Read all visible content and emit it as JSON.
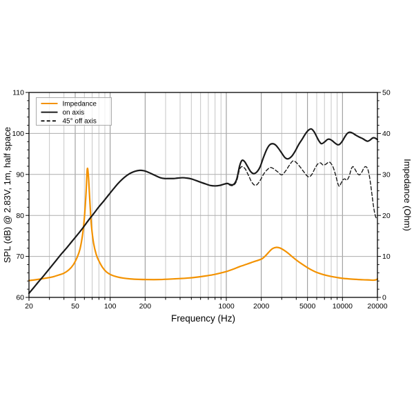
{
  "chart_data": {
    "type": "line",
    "title": "",
    "xlabel": "Frequency (Hz)",
    "ylabel_left": "SPL (dB) @ 2.83V, 1m, half space",
    "ylabel_right": "Impedance (Ohm)",
    "x_scale": "log",
    "xlim": [
      20,
      20000
    ],
    "ylim_left": [
      60,
      110
    ],
    "ylim_right": [
      0,
      50
    ],
    "grid": true,
    "legend_position": "upper left",
    "x_tick_labels": [
      "20",
      "50",
      "100",
      "200",
      "1000",
      "2000",
      "5000",
      "10000",
      "20000"
    ],
    "x_tick_values": [
      20,
      50,
      100,
      200,
      1000,
      2000,
      5000,
      10000,
      20000
    ],
    "x_gridlines": [
      30,
      40,
      50,
      60,
      70,
      80,
      90,
      100,
      200,
      300,
      400,
      500,
      600,
      700,
      800,
      900,
      1000,
      2000,
      3000,
      4000,
      5000,
      6000,
      7000,
      8000,
      9000,
      10000
    ],
    "y_left_ticks": [
      60,
      70,
      80,
      90,
      100,
      110
    ],
    "y_right_ticks": [
      0,
      10,
      20,
      30,
      40,
      50
    ],
    "y_minor_step": 2,
    "colors": {
      "impedance": "#F39200",
      "spl": "#1a1a1a",
      "grid_minor": "#c6c6c6",
      "grid_major": "#8f8f8f",
      "frame": "#000000",
      "legend_border": "#aaaaaa"
    },
    "legend": [
      {
        "label": "Impedance",
        "color": "#F39200",
        "dash": null
      },
      {
        "label": "on axis",
        "color": "#1a1a1a",
        "dash": null
      },
      {
        "label": "45° off axis",
        "color": "#1a1a1a",
        "dash": [
          5,
          3.2
        ]
      }
    ],
    "series": [
      {
        "name": "Impedance",
        "axis": "right",
        "unit": "Ohm",
        "color": "#F39200",
        "width": 2.2,
        "dash": null,
        "points": [
          [
            20,
            4.1
          ],
          [
            24,
            4.4
          ],
          [
            28,
            4.7
          ],
          [
            32,
            5.0
          ],
          [
            36,
            5.45
          ],
          [
            40,
            5.9
          ],
          [
            44,
            6.7
          ],
          [
            48,
            7.9
          ],
          [
            52,
            9.8
          ],
          [
            55,
            11.8
          ],
          [
            58,
            15.5
          ],
          [
            60,
            19.5
          ],
          [
            62,
            25.5
          ],
          [
            63.5,
            31.3
          ],
          [
            65,
            29.5
          ],
          [
            67,
            23.0
          ],
          [
            69,
            17.5
          ],
          [
            72,
            13.2
          ],
          [
            76,
            10.4
          ],
          [
            80,
            8.9
          ],
          [
            86,
            7.3
          ],
          [
            93,
            6.2
          ],
          [
            102,
            5.5
          ],
          [
            115,
            5.0
          ],
          [
            130,
            4.7
          ],
          [
            150,
            4.5
          ],
          [
            175,
            4.4
          ],
          [
            210,
            4.35
          ],
          [
            260,
            4.35
          ],
          [
            320,
            4.45
          ],
          [
            400,
            4.6
          ],
          [
            480,
            4.75
          ],
          [
            560,
            4.95
          ],
          [
            650,
            5.2
          ],
          [
            760,
            5.5
          ],
          [
            880,
            5.9
          ],
          [
            1000,
            6.3
          ],
          [
            1150,
            6.9
          ],
          [
            1300,
            7.5
          ],
          [
            1500,
            8.1
          ],
          [
            1700,
            8.65
          ],
          [
            1900,
            9.1
          ],
          [
            2050,
            9.5
          ],
          [
            2200,
            10.3
          ],
          [
            2350,
            11.2
          ],
          [
            2500,
            11.9
          ],
          [
            2700,
            12.2
          ],
          [
            2900,
            12.05
          ],
          [
            3100,
            11.6
          ],
          [
            3400,
            10.8
          ],
          [
            3700,
            9.9
          ],
          [
            4100,
            8.9
          ],
          [
            4500,
            8.1
          ],
          [
            5000,
            7.25
          ],
          [
            5500,
            6.6
          ],
          [
            6000,
            6.1
          ],
          [
            6600,
            5.7
          ],
          [
            7300,
            5.35
          ],
          [
            8000,
            5.1
          ],
          [
            9000,
            4.85
          ],
          [
            10000,
            4.65
          ],
          [
            11500,
            4.5
          ],
          [
            13000,
            4.4
          ],
          [
            15000,
            4.3
          ],
          [
            17000,
            4.25
          ],
          [
            18500,
            4.2
          ],
          [
            19500,
            4.3
          ],
          [
            20000,
            4.5
          ]
        ]
      },
      {
        "name": "on axis",
        "axis": "left",
        "unit": "dB",
        "color": "#1a1a1a",
        "width": 2.2,
        "dash": null,
        "points": [
          [
            20,
            61.0
          ],
          [
            22,
            62.4
          ],
          [
            24,
            63.7
          ],
          [
            27,
            65.4
          ],
          [
            30,
            67.0
          ],
          [
            34,
            68.9
          ],
          [
            38,
            70.6
          ],
          [
            42,
            72.0
          ],
          [
            47,
            73.7
          ],
          [
            52,
            75.2
          ],
          [
            58,
            76.9
          ],
          [
            65,
            78.8
          ],
          [
            72,
            80.4
          ],
          [
            80,
            82.1
          ],
          [
            88,
            83.5
          ],
          [
            97,
            85.0
          ],
          [
            107,
            86.5
          ],
          [
            117,
            87.8
          ],
          [
            128,
            88.9
          ],
          [
            140,
            89.8
          ],
          [
            152,
            90.4
          ],
          [
            165,
            90.8
          ],
          [
            180,
            91.0
          ],
          [
            195,
            90.9
          ],
          [
            210,
            90.6
          ],
          [
            230,
            90.1
          ],
          [
            250,
            89.6
          ],
          [
            270,
            89.2
          ],
          [
            295,
            89.0
          ],
          [
            320,
            89.0
          ],
          [
            350,
            89.0
          ],
          [
            380,
            89.1
          ],
          [
            420,
            89.2
          ],
          [
            460,
            89.1
          ],
          [
            500,
            88.9
          ],
          [
            550,
            88.5
          ],
          [
            600,
            88.1
          ],
          [
            660,
            87.7
          ],
          [
            730,
            87.3
          ],
          [
            800,
            87.2
          ],
          [
            870,
            87.3
          ],
          [
            950,
            87.6
          ],
          [
            1020,
            87.8
          ],
          [
            1090,
            87.5
          ],
          [
            1160,
            87.6
          ],
          [
            1230,
            88.9
          ],
          [
            1300,
            92.0
          ],
          [
            1360,
            93.4
          ],
          [
            1430,
            93.2
          ],
          [
            1520,
            92.0
          ],
          [
            1620,
            90.7
          ],
          [
            1720,
            90.2
          ],
          [
            1830,
            90.6
          ],
          [
            1950,
            91.8
          ],
          [
            2080,
            94.0
          ],
          [
            2220,
            96.0
          ],
          [
            2360,
            97.2
          ],
          [
            2500,
            97.5
          ],
          [
            2650,
            97.2
          ],
          [
            2820,
            96.3
          ],
          [
            3000,
            95.2
          ],
          [
            3200,
            94.1
          ],
          [
            3400,
            93.8
          ],
          [
            3650,
            94.4
          ],
          [
            3900,
            95.6
          ],
          [
            4200,
            97.3
          ],
          [
            4500,
            98.6
          ],
          [
            4800,
            99.9
          ],
          [
            5100,
            100.8
          ],
          [
            5400,
            101.1
          ],
          [
            5700,
            100.4
          ],
          [
            6000,
            99.2
          ],
          [
            6300,
            98.1
          ],
          [
            6600,
            97.5
          ],
          [
            7000,
            97.9
          ],
          [
            7400,
            98.5
          ],
          [
            7700,
            98.6
          ],
          [
            8100,
            98.3
          ],
          [
            8500,
            97.8
          ],
          [
            9000,
            97.3
          ],
          [
            9400,
            97.3
          ],
          [
            9900,
            98.0
          ],
          [
            10500,
            99.2
          ],
          [
            11000,
            100.0
          ],
          [
            11500,
            100.3
          ],
          [
            12200,
            100.1
          ],
          [
            13000,
            99.6
          ],
          [
            14000,
            99.1
          ],
          [
            15000,
            98.7
          ],
          [
            15800,
            98.3
          ],
          [
            16500,
            98.1
          ],
          [
            17300,
            98.4
          ],
          [
            18200,
            98.9
          ],
          [
            19000,
            98.9
          ],
          [
            20000,
            98.5
          ]
        ]
      },
      {
        "name": "45° off axis",
        "axis": "left",
        "unit": "dB",
        "color": "#1a1a1a",
        "width": 1.4,
        "dash": [
          5,
          3.2
        ],
        "points": [
          [
            950,
            87.6
          ],
          [
            1020,
            87.7
          ],
          [
            1090,
            87.3
          ],
          [
            1160,
            87.4
          ],
          [
            1230,
            88.5
          ],
          [
            1300,
            91.2
          ],
          [
            1360,
            91.9
          ],
          [
            1450,
            91.4
          ],
          [
            1550,
            89.8
          ],
          [
            1650,
            88.2
          ],
          [
            1750,
            87.4
          ],
          [
            1850,
            87.6
          ],
          [
            1980,
            88.8
          ],
          [
            2120,
            90.3
          ],
          [
            2280,
            91.3
          ],
          [
            2400,
            91.7
          ],
          [
            2550,
            91.4
          ],
          [
            2750,
            90.7
          ],
          [
            3000,
            89.9
          ],
          [
            3250,
            90.9
          ],
          [
            3500,
            92.3
          ],
          [
            3750,
            93.3
          ],
          [
            4000,
            92.9
          ],
          [
            4300,
            91.9
          ],
          [
            4600,
            90.8
          ],
          [
            4900,
            89.8
          ],
          [
            5150,
            89.4
          ],
          [
            5450,
            90.0
          ],
          [
            5800,
            91.5
          ],
          [
            6150,
            92.6
          ],
          [
            6500,
            92.8
          ],
          [
            6800,
            92.3
          ],
          [
            7200,
            92.5
          ],
          [
            7600,
            93.0
          ],
          [
            7900,
            92.8
          ],
          [
            8300,
            91.8
          ],
          [
            8700,
            90.0
          ],
          [
            9100,
            87.9
          ],
          [
            9400,
            87.1
          ],
          [
            9700,
            87.8
          ],
          [
            10100,
            88.7
          ],
          [
            10500,
            88.9
          ],
          [
            10900,
            88.6
          ],
          [
            11400,
            89.5
          ],
          [
            11900,
            91.3
          ],
          [
            12300,
            91.9
          ],
          [
            12800,
            91.3
          ],
          [
            13400,
            90.3
          ],
          [
            14000,
            89.9
          ],
          [
            14700,
            90.6
          ],
          [
            15300,
            91.6
          ],
          [
            15900,
            91.9
          ],
          [
            16500,
            91.3
          ],
          [
            17000,
            89.8
          ],
          [
            17500,
            87.5
          ],
          [
            18000,
            84.8
          ],
          [
            18600,
            81.8
          ],
          [
            19200,
            79.9
          ],
          [
            19700,
            79.2
          ],
          [
            20000,
            79.0
          ]
        ]
      }
    ]
  }
}
